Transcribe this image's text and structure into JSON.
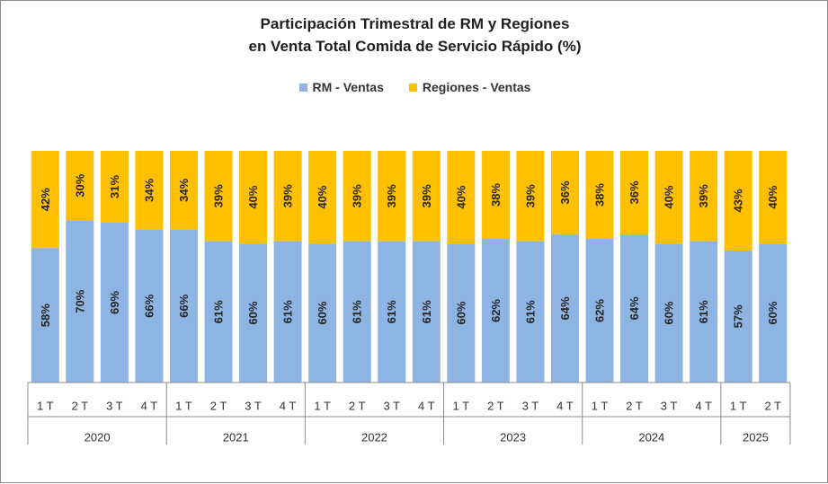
{
  "chart_data": {
    "type": "bar",
    "stacked": true,
    "percent_stacked": true,
    "title": "Participación Trimestral de RM y Regiones",
    "subtitle": "en Venta Total Comida de Servicio Rápido (%)",
    "legend_position": "top",
    "colors": {
      "rm": "#8EB4E3",
      "regiones": "#FFC000"
    },
    "categories": [
      "1 T",
      "2 T",
      "3 T",
      "4 T",
      "1 T",
      "2 T",
      "3 T",
      "4 T",
      "1 T",
      "2 T",
      "3 T",
      "4 T",
      "1 T",
      "2 T",
      "3 T",
      "4 T",
      "1 T",
      "2 T",
      "3 T",
      "4 T",
      "1 T",
      "2 T"
    ],
    "year_groups": [
      {
        "label": "2020",
        "count": 4
      },
      {
        "label": "2021",
        "count": 4
      },
      {
        "label": "2022",
        "count": 4
      },
      {
        "label": "2023",
        "count": 4
      },
      {
        "label": "2024",
        "count": 4
      },
      {
        "label": "2025",
        "count": 2
      }
    ],
    "series": [
      {
        "name": "RM - Ventas",
        "values": [
          58,
          70,
          69,
          66,
          66,
          61,
          60,
          61,
          60,
          61,
          61,
          61,
          60,
          62,
          61,
          64,
          62,
          64,
          60,
          61,
          57,
          60
        ]
      },
      {
        "name": "Regiones - Ventas",
        "values": [
          42,
          30,
          31,
          34,
          34,
          39,
          40,
          39,
          40,
          39,
          39,
          39,
          40,
          38,
          39,
          36,
          38,
          36,
          40,
          39,
          43,
          40
        ]
      }
    ],
    "value_suffix": "%",
    "ylim": [
      0,
      100
    ]
  }
}
